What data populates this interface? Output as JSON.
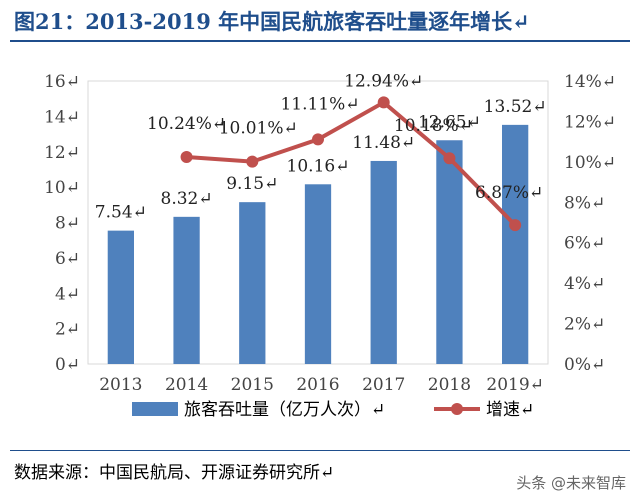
{
  "title": "图21：2013-2019 年中国民航旅客吞吐量逐年增长↵",
  "source": "数据来源：中国民航局、开源证券研究所↵",
  "watermark": "头条 @未来智库",
  "colors": {
    "bar": "#4f81bd",
    "line": "#c0504d",
    "title": "#1f4e8c"
  },
  "chart_data": {
    "type": "bar+line",
    "categories": [
      "2013",
      "2014",
      "2015",
      "2016",
      "2017",
      "2018",
      "2019"
    ],
    "category_tick_labels": [
      "2013",
      "2014",
      "2015",
      "2016",
      "2017",
      "2018",
      "2019↵"
    ],
    "series": [
      {
        "name": "旅客吞吐量（亿万人次）",
        "type": "bar",
        "axis": "left",
        "values": [
          7.54,
          8.32,
          9.15,
          10.16,
          11.48,
          12.65,
          13.52
        ],
        "labels": [
          "7.54↵",
          "8.32↵",
          "9.15↵",
          "10.16↵",
          "11.48↵",
          "12.65↵",
          "13.52↵"
        ]
      },
      {
        "name": "增速",
        "type": "line",
        "axis": "right",
        "x": [
          "2014",
          "2015",
          "2016",
          "2017",
          "2018",
          "2019"
        ],
        "values": [
          10.24,
          10.01,
          11.11,
          12.94,
          10.18,
          6.87
        ],
        "labels": [
          "10.24%↵",
          "10.01%↵",
          "11.11%↵",
          "12.94%↵",
          "10.18%↵",
          "6.87%↵"
        ]
      }
    ],
    "left_axis": {
      "ylim": [
        0,
        16
      ],
      "ticks": [
        0,
        2,
        4,
        6,
        8,
        10,
        12,
        14,
        16
      ],
      "tick_labels": [
        "0↵",
        "2↵",
        "4↵",
        "6↵",
        "8↵",
        "10↵",
        "12↵",
        "14↵",
        "16↵"
      ]
    },
    "right_axis": {
      "ylim": [
        0,
        14
      ],
      "ticks": [
        0,
        2,
        4,
        6,
        8,
        10,
        12,
        14
      ],
      "tick_labels": [
        "0%↵",
        "2%↵",
        "4%↵",
        "6%↵",
        "8%↵",
        "10%↵",
        "12%↵",
        "14%↵"
      ]
    },
    "legend": {
      "placement": "bottom",
      "entries": [
        "旅客吞吐量（亿万人次）↵",
        "增速↵"
      ]
    },
    "grid": false
  }
}
